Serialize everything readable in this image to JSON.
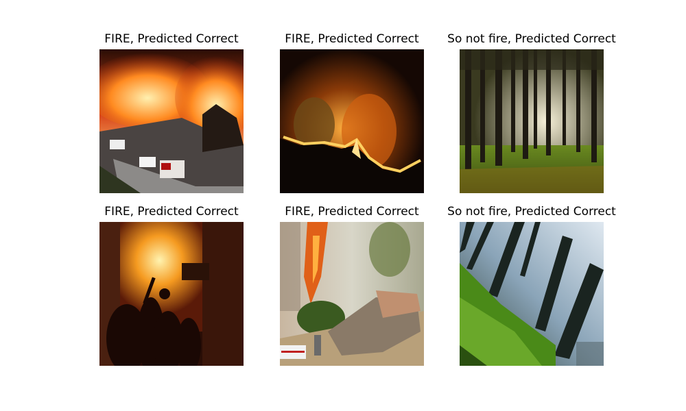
{
  "panels": [
    {
      "title": "FIRE, Predicted Correct",
      "image": "wildfire-with-trucks-on-road"
    },
    {
      "title": "FIRE, Predicted Correct",
      "image": "night-forest-fire-line"
    },
    {
      "title": "So not fire, Predicted Correct",
      "image": "sunlit-pine-forest"
    },
    {
      "title": "FIRE, Predicted Correct",
      "image": "burning-building-with-silhouettes"
    },
    {
      "title": "FIRE, Predicted Correct",
      "image": "burnt-vehicles-firefighters-smoke"
    },
    {
      "title": "So not fire, Predicted Correct",
      "image": "tilted-green-forest"
    }
  ]
}
